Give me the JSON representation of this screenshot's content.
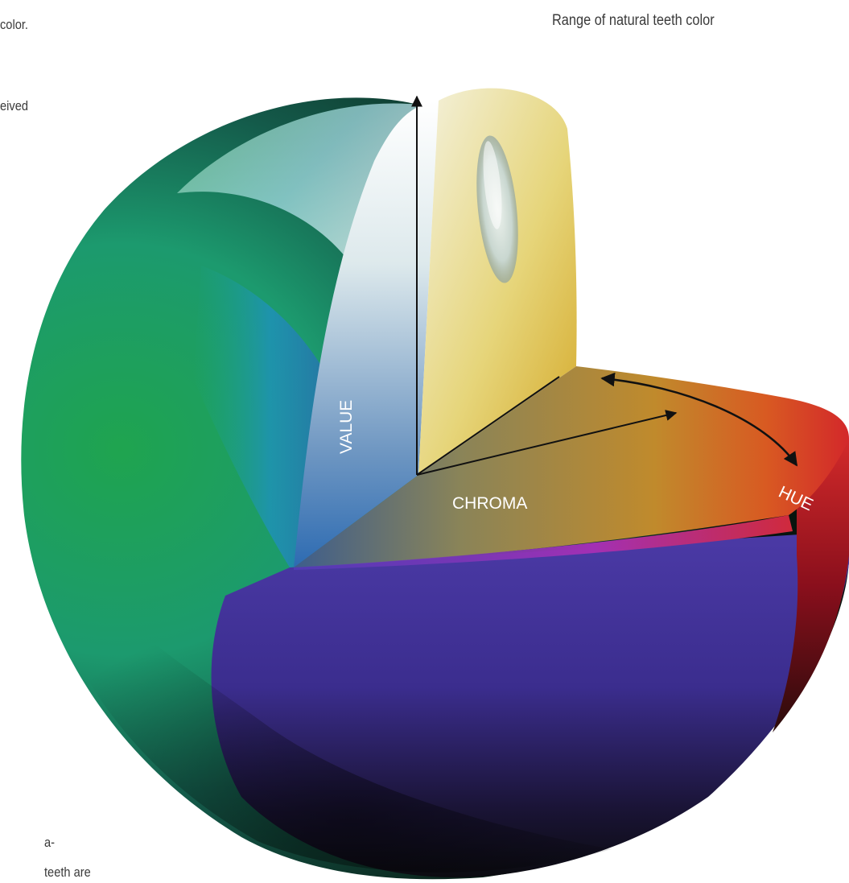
{
  "page_text": {
    "line_1": "color.",
    "line_2": "eived",
    "line_3": "a-",
    "line_4": "teeth are"
  },
  "caption": "Range of natural teeth color",
  "axes": {
    "value": "VALUE",
    "chroma": "CHROMA",
    "hue": "HUE"
  }
}
